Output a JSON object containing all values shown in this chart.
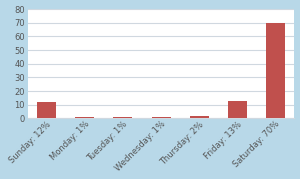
{
  "categories": [
    "Sunday: 12%",
    "Monday: 1%",
    "Tuesday: 1%",
    "Wednesday: 1%",
    "Thursday: 2%",
    "Friday: 13%",
    "Saturday: 70%"
  ],
  "values": [
    12,
    1,
    1,
    1,
    2,
    13,
    70
  ],
  "bar_color": "#c0504d",
  "figure_bg_color": "#b8d8e8",
  "plot_bg_color": "#ffffff",
  "ylim": [
    0,
    80
  ],
  "yticks": [
    0,
    10,
    20,
    30,
    40,
    50,
    60,
    70,
    80
  ],
  "grid_color": "#d0d8e0",
  "tick_label_fontsize": 6.0,
  "bar_width": 0.5,
  "label_rotation": 45,
  "label_color": "#555555"
}
